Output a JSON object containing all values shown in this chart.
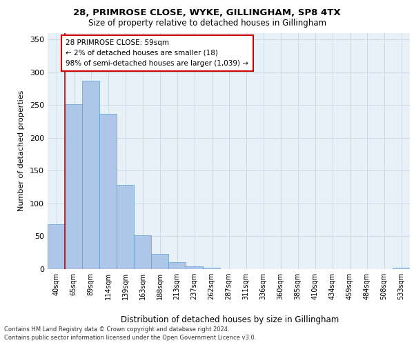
{
  "title1": "28, PRIMROSE CLOSE, WYKE, GILLINGHAM, SP8 4TX",
  "title2": "Size of property relative to detached houses in Gillingham",
  "xlabel": "Distribution of detached houses by size in Gillingham",
  "ylabel": "Number of detached properties",
  "bar_labels": [
    "40sqm",
    "65sqm",
    "89sqm",
    "114sqm",
    "139sqm",
    "163sqm",
    "188sqm",
    "213sqm",
    "237sqm",
    "262sqm",
    "287sqm",
    "311sqm",
    "336sqm",
    "360sqm",
    "385sqm",
    "410sqm",
    "434sqm",
    "459sqm",
    "484sqm",
    "508sqm",
    "533sqm"
  ],
  "bar_values": [
    68,
    251,
    287,
    236,
    128,
    52,
    23,
    11,
    4,
    2,
    0,
    0,
    0,
    0,
    0,
    0,
    0,
    0,
    0,
    0,
    2
  ],
  "bar_color": "#aec6e8",
  "bar_edge_color": "#5a9fd4",
  "ylim": [
    0,
    360
  ],
  "yticks": [
    0,
    50,
    100,
    150,
    200,
    250,
    300,
    350
  ],
  "vline_x": 0.5,
  "vline_color": "#cc0000",
  "annotation_text": "28 PRIMROSE CLOSE: 59sqm\n← 2% of detached houses are smaller (18)\n98% of semi-detached houses are larger (1,039) →",
  "annotation_box_color": "#ffffff",
  "annotation_box_edge": "#cc0000",
  "grid_color": "#ccd9e8",
  "footnote1": "Contains HM Land Registry data © Crown copyright and database right 2024.",
  "footnote2": "Contains public sector information licensed under the Open Government Licence v3.0.",
  "background_color": "#e8f0f8"
}
